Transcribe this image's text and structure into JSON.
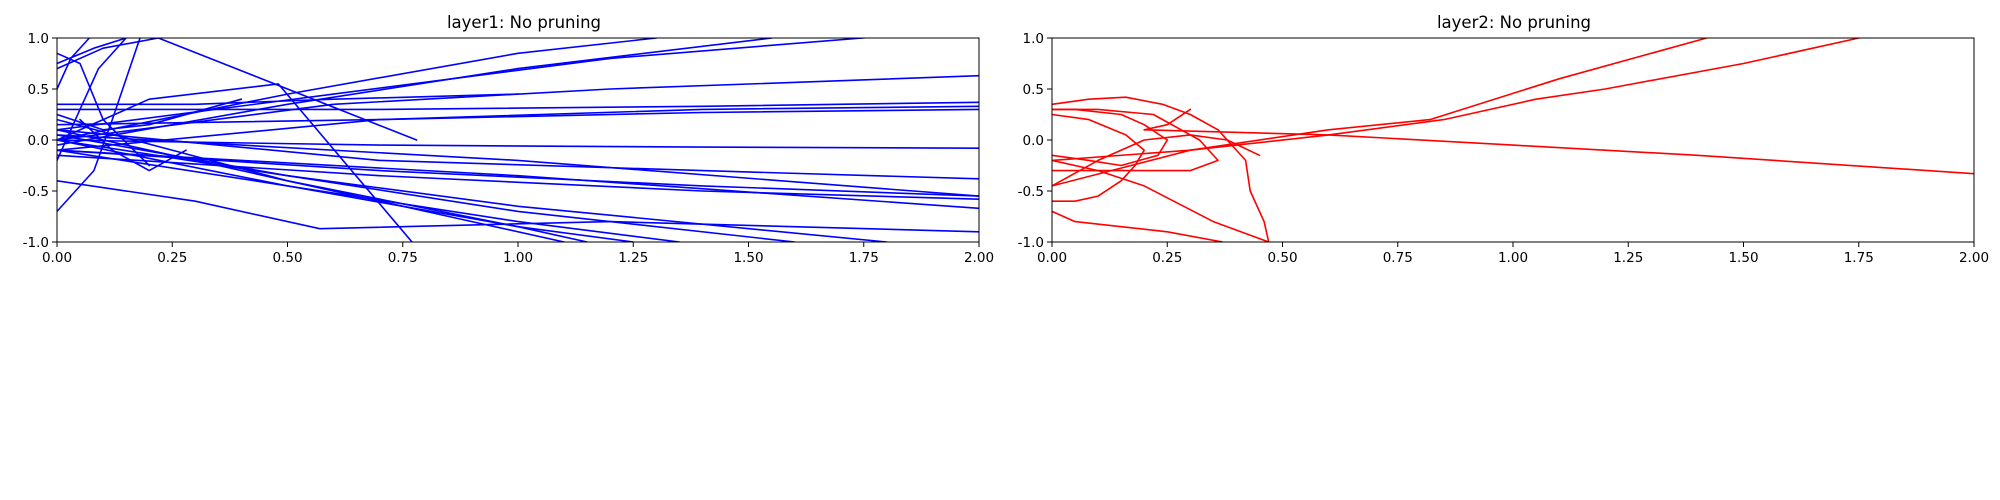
{
  "chart_data": [
    {
      "type": "line",
      "title": "layer1: No pruning",
      "xlabel": "",
      "ylabel": "",
      "xlim": [
        0,
        2
      ],
      "ylim": [
        -1,
        1
      ],
      "xticks": [
        "0.00",
        "0.25",
        "0.50",
        "0.75",
        "1.00",
        "1.25",
        "1.50",
        "1.75",
        "2.00"
      ],
      "yticks": [
        "-1.0",
        "-0.5",
        "0.0",
        "0.5",
        "1.0"
      ],
      "grid": false,
      "color": "#0000ff",
      "series": [
        {
          "x": [
            0,
            0.5,
            1.0,
            1.3
          ],
          "y": [
            0.0,
            0.45,
            0.85,
            1.0
          ]
        },
        {
          "x": [
            0,
            0.5,
            1.0,
            1.55
          ],
          "y": [
            -0.05,
            0.35,
            0.7,
            1.0
          ]
        },
        {
          "x": [
            0,
            0.6,
            1.2,
            1.8
          ],
          "y": [
            0.1,
            0.45,
            0.8,
            1.02
          ]
        },
        {
          "x": [
            0,
            0.6,
            1.2,
            2.0
          ],
          "y": [
            0.0,
            0.35,
            0.5,
            0.63
          ]
        },
        {
          "x": [
            0,
            0.7,
            1.4,
            2.0
          ],
          "y": [
            0.3,
            0.3,
            0.33,
            0.37
          ]
        },
        {
          "x": [
            0,
            0.7,
            1.4,
            2.0
          ],
          "y": [
            -0.1,
            0.2,
            0.3,
            0.33
          ]
        },
        {
          "x": [
            0,
            0.7,
            1.4,
            2.0
          ],
          "y": [
            0.15,
            0.2,
            0.27,
            0.3
          ]
        },
        {
          "x": [
            0,
            0.7,
            1.4,
            2.0
          ],
          "y": [
            0.0,
            -0.05,
            -0.07,
            -0.08
          ]
        },
        {
          "x": [
            0,
            0.7,
            1.4,
            2.0
          ],
          "y": [
            0.1,
            -0.2,
            -0.3,
            -0.38
          ]
        },
        {
          "x": [
            0,
            0.7,
            1.4,
            2.0
          ],
          "y": [
            -0.1,
            -0.3,
            -0.45,
            -0.55
          ]
        },
        {
          "x": [
            0,
            0.7,
            1.4,
            2.0
          ],
          "y": [
            -0.15,
            -0.35,
            -0.5,
            -0.58
          ]
        },
        {
          "x": [
            0,
            0.5,
            1.0,
            1.8
          ],
          "y": [
            0.0,
            -0.35,
            -0.65,
            -1.0
          ]
        },
        {
          "x": [
            0,
            0.5,
            1.0,
            1.6
          ],
          "y": [
            0.05,
            -0.35,
            -0.7,
            -1.0
          ]
        },
        {
          "x": [
            0,
            0.5,
            1.0,
            1.35
          ],
          "y": [
            -0.1,
            -0.45,
            -0.8,
            -1.0
          ]
        },
        {
          "x": [
            0,
            0.5,
            1.0,
            1.25
          ],
          "y": [
            0.0,
            -0.45,
            -0.85,
            -1.0
          ]
        },
        {
          "x": [
            0,
            0.5,
            1.0,
            1.15
          ],
          "y": [
            0.2,
            -0.4,
            -0.85,
            -1.0
          ]
        },
        {
          "x": [
            0,
            0.5,
            0.9,
            1.1
          ],
          "y": [
            0.1,
            -0.4,
            -0.8,
            -1.0
          ]
        },
        {
          "x": [
            0,
            0.3,
            0.57,
            1.2,
            2.0
          ],
          "y": [
            -0.4,
            -0.6,
            -0.87,
            -0.8,
            -0.9
          ]
        },
        {
          "x": [
            0,
            1.0,
            2.0
          ],
          "y": [
            -0.1,
            -0.35,
            -0.67
          ]
        },
        {
          "x": [
            0,
            1.0,
            2.0
          ],
          "y": [
            0.05,
            -0.2,
            -0.55
          ]
        },
        {
          "x": [
            0,
            0.2,
            0.48,
            0.77
          ],
          "y": [
            0.0,
            0.4,
            0.55,
            -1.0
          ]
        },
        {
          "x": [
            0,
            0.1,
            0.22,
            0.78
          ],
          "y": [
            0.7,
            0.9,
            1.0,
            0.0
          ]
        },
        {
          "x": [
            0,
            0.05,
            0.09,
            0.15
          ],
          "y": [
            -0.2,
            0.3,
            0.7,
            1.0
          ]
        },
        {
          "x": [
            0,
            0.08,
            0.12,
            0.18
          ],
          "y": [
            -0.7,
            -0.3,
            0.2,
            1.0
          ]
        },
        {
          "x": [
            0,
            0.03,
            0.07
          ],
          "y": [
            0.5,
            0.8,
            1.0
          ]
        },
        {
          "x": [
            0,
            0.08,
            0.15
          ],
          "y": [
            0.75,
            0.9,
            1.0
          ]
        },
        {
          "x": [
            0,
            0.05,
            0.1,
            0.2
          ],
          "y": [
            0.85,
            0.75,
            0.2,
            -0.25
          ]
        },
        {
          "x": [
            0.05,
            0.12,
            0.2,
            0.28
          ],
          "y": [
            0.2,
            -0.1,
            -0.3,
            -0.1
          ]
        },
        {
          "x": [
            0,
            0.1,
            0.2,
            0.4
          ],
          "y": [
            0.25,
            0.1,
            0.15,
            0.4
          ]
        },
        {
          "x": [
            0,
            0.3,
            0.6,
            1.0
          ],
          "y": [
            0.35,
            0.35,
            0.4,
            0.45
          ]
        }
      ]
    },
    {
      "type": "line",
      "title": "layer2: No pruning",
      "xlabel": "",
      "ylabel": "",
      "xlim": [
        0,
        2
      ],
      "ylim": [
        -1,
        1
      ],
      "xticks": [
        "0.00",
        "0.25",
        "0.50",
        "0.75",
        "1.00",
        "1.25",
        "1.50",
        "1.75",
        "2.00"
      ],
      "yticks": [
        "-1.0",
        "-0.5",
        "0.0",
        "0.5",
        "1.0"
      ],
      "grid": false,
      "color": "#ff0000",
      "series": [
        {
          "x": [
            0,
            0.3,
            0.6,
            0.82,
            1.1,
            1.42
          ],
          "y": [
            -0.45,
            -0.1,
            0.1,
            0.2,
            0.6,
            1.0
          ]
        },
        {
          "x": [
            0,
            0.3,
            0.6,
            0.85,
            1.05,
            1.2,
            1.5,
            1.75
          ],
          "y": [
            -0.2,
            -0.1,
            0.05,
            0.2,
            0.4,
            0.5,
            0.75,
            1.0
          ]
        },
        {
          "x": [
            0.2,
            0.6,
            1.0,
            1.4,
            2.0
          ],
          "y": [
            0.1,
            0.05,
            -0.05,
            -0.15,
            -0.33
          ]
        },
        {
          "x": [
            0,
            0.05,
            0.15,
            0.25,
            0.37
          ],
          "y": [
            -0.7,
            -0.8,
            -0.85,
            -0.9,
            -1.0
          ]
        },
        {
          "x": [
            0,
            0.1,
            0.2,
            0.35,
            0.47
          ],
          "y": [
            -0.2,
            -0.3,
            -0.45,
            -0.8,
            -1.0
          ]
        },
        {
          "x": [
            0,
            0.08,
            0.16,
            0.24,
            0.3,
            0.36,
            0.42,
            0.43,
            0.46,
            0.47
          ],
          "y": [
            0.35,
            0.4,
            0.42,
            0.35,
            0.25,
            0.1,
            -0.2,
            -0.5,
            -0.8,
            -1.0
          ]
        },
        {
          "x": [
            0,
            0.1,
            0.22,
            0.28,
            0.32,
            0.36,
            0.3,
            0.2,
            0.1,
            0.0
          ],
          "y": [
            0.3,
            0.3,
            0.25,
            0.1,
            0.0,
            -0.2,
            -0.3,
            -0.3,
            -0.3,
            -0.3
          ]
        },
        {
          "x": [
            0,
            0.08,
            0.16,
            0.2,
            0.18,
            0.15,
            0.1,
            0.05,
            0.0
          ],
          "y": [
            0.25,
            0.2,
            0.05,
            -0.1,
            -0.25,
            -0.4,
            -0.55,
            -0.6,
            -0.6
          ]
        },
        {
          "x": [
            0,
            0.05,
            0.15,
            0.2,
            0.25,
            0.23,
            0.15,
            0.08,
            0.0
          ],
          "y": [
            0.3,
            0.3,
            0.25,
            0.15,
            0.0,
            -0.15,
            -0.25,
            -0.2,
            -0.15
          ]
        },
        {
          "x": [
            0,
            0.1,
            0.2,
            0.3,
            0.38,
            0.45
          ],
          "y": [
            -0.45,
            -0.2,
            0.0,
            0.05,
            0.0,
            -0.15
          ]
        },
        {
          "x": [
            0.2,
            0.25,
            0.3
          ],
          "y": [
            0.1,
            0.15,
            0.3
          ]
        }
      ]
    }
  ]
}
